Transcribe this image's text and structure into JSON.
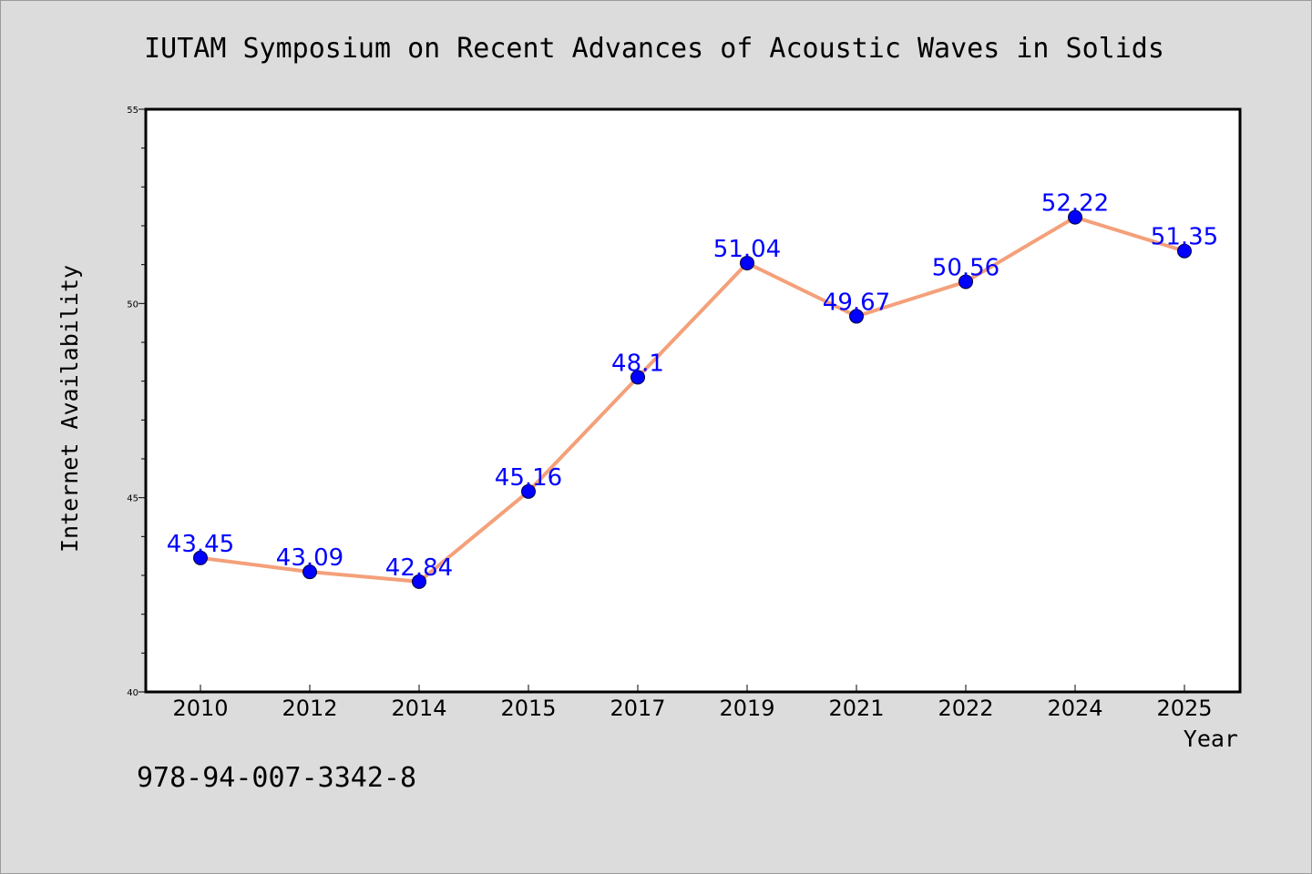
{
  "chart_data": {
    "type": "line",
    "title": "IUTAM Symposium on Recent Advances of Acoustic Waves in Solids",
    "xlabel": "Year",
    "ylabel": "Internet Availability",
    "categories": [
      "2010",
      "2012",
      "2014",
      "2015",
      "2017",
      "2019",
      "2021",
      "2022",
      "2024",
      "2025"
    ],
    "series": [
      {
        "values": [
          43.45,
          43.09,
          42.84,
          45.16,
          48.1,
          51.04,
          49.67,
          50.56,
          52.22,
          51.35
        ],
        "labels": [
          "43.45",
          "43.09",
          "42.84",
          "45.16",
          "48.1",
          "51.04",
          "49.67",
          "50.56",
          "52.22",
          "51.35"
        ],
        "line_color": "#f4a07a",
        "marker_color": "#0000ff"
      }
    ],
    "ylim": [
      40,
      55
    ],
    "y_ticks": [
      "40",
      "45",
      "50",
      "55"
    ],
    "grid": false,
    "legend": "none"
  },
  "footer": {
    "isbn": "978-94-007-3342-8"
  },
  "colors": {
    "background": "#dcdcdc",
    "plot_background": "#ffffff",
    "line": "#f4a07a",
    "marker": "#0000ff",
    "data_label": "#0000ff"
  }
}
